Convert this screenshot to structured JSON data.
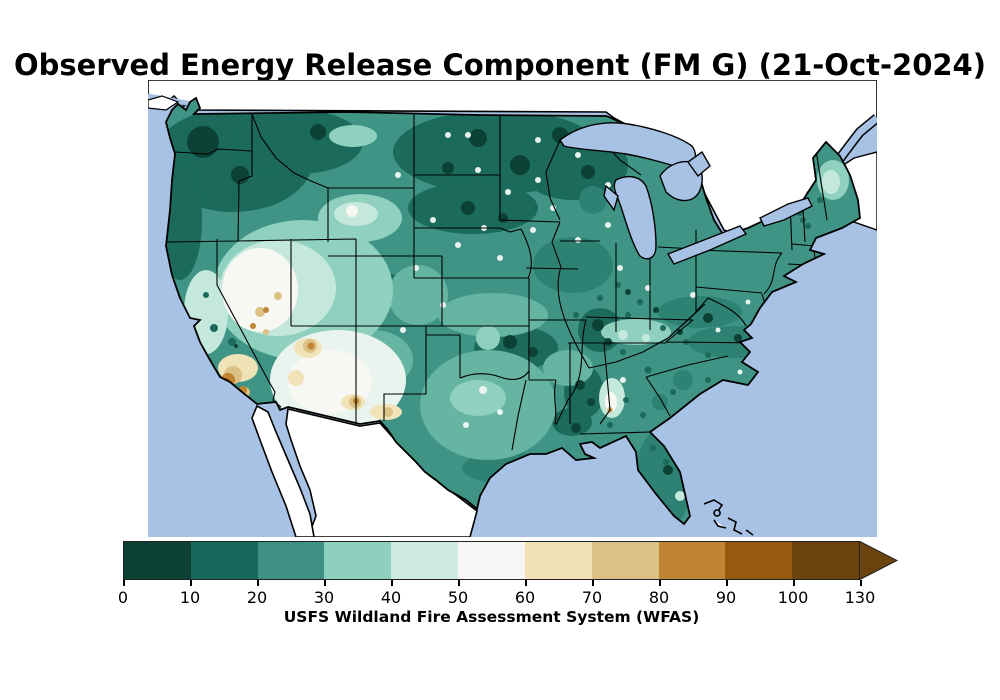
{
  "title": "Observed Energy Release Component (FM G) (21-Oct-2024)",
  "colorbar": {
    "label": "USFS Wildland Fire Assessment System (WFAS)",
    "ticks": [
      "0",
      "10",
      "20",
      "30",
      "40",
      "50",
      "60",
      "70",
      "80",
      "90",
      "100",
      "130"
    ],
    "segment_colors": [
      "#0d4035",
      "#17695c",
      "#3f9183",
      "#8ed0c0",
      "#cfeae1",
      "#f6f6f4",
      "#f0e2b6",
      "#dcc184",
      "#bf8434",
      "#955a10",
      "#6b430e"
    ],
    "arrow_color": "#6b430e"
  },
  "map": {
    "legend_semantics": "Energy Release Component value bands 0-130",
    "colors": {
      "ocean": "#a8c2e6",
      "land": "#ffffff",
      "outline": "#000000",
      "c0": "#0c4235",
      "c1": "#1b6a5b",
      "c2": "#2e8274",
      "c3": "#3f9485",
      "c4": "#66b4a2",
      "c5": "#8fd0bf",
      "c6": "#c5e8dc",
      "c7": "#eaf4ef",
      "c8": "#f7f7f4",
      "tan1": "#f1e3b8",
      "tan2": "#dcc184",
      "br1": "#bf8434",
      "br2": "#955a10",
      "br3": "#6b430e"
    }
  }
}
